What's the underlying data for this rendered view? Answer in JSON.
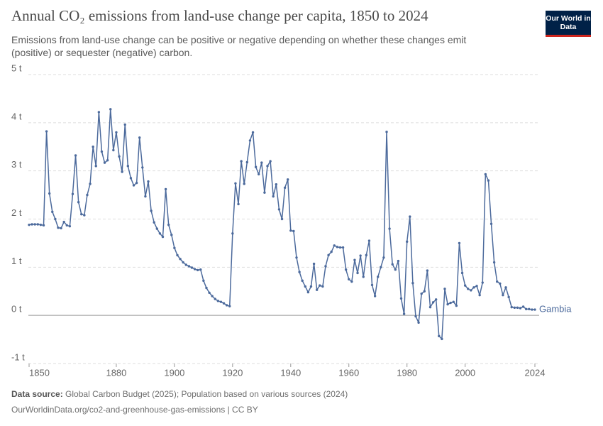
{
  "chart_data": {
    "type": "line",
    "title": "Annual CO₂ emissions from land-use change per capita, 1850 to 2024",
    "subtitle": "Emissions from land-use change can be positive or negative depending on whether these changes emit (positive) or sequester (negative) carbon.",
    "logo": "Our World in Data",
    "source_label": "Data source:",
    "source": "Global Carbon Budget (2025); Population based on various sources (2024)",
    "url": "OurWorldinData.org/co2-and-greenhouse-gas-emissions | CC BY",
    "x": [
      1850,
      1851,
      1852,
      1853,
      1854,
      1855,
      1856,
      1857,
      1858,
      1859,
      1860,
      1861,
      1862,
      1863,
      1864,
      1865,
      1866,
      1867,
      1868,
      1869,
      1870,
      1871,
      1872,
      1873,
      1874,
      1875,
      1876,
      1877,
      1878,
      1879,
      1880,
      1881,
      1882,
      1883,
      1884,
      1885,
      1886,
      1887,
      1888,
      1889,
      1890,
      1891,
      1892,
      1893,
      1894,
      1895,
      1896,
      1897,
      1898,
      1899,
      1900,
      1901,
      1902,
      1903,
      1904,
      1905,
      1906,
      1907,
      1908,
      1909,
      1910,
      1911,
      1912,
      1913,
      1914,
      1915,
      1916,
      1917,
      1918,
      1919,
      1920,
      1921,
      1922,
      1923,
      1924,
      1925,
      1926,
      1927,
      1928,
      1929,
      1930,
      1931,
      1932,
      1933,
      1934,
      1935,
      1936,
      1937,
      1938,
      1939,
      1940,
      1941,
      1942,
      1943,
      1944,
      1945,
      1946,
      1947,
      1948,
      1949,
      1950,
      1951,
      1952,
      1953,
      1954,
      1955,
      1956,
      1957,
      1958,
      1959,
      1960,
      1961,
      1962,
      1963,
      1964,
      1965,
      1966,
      1967,
      1968,
      1969,
      1970,
      1971,
      1972,
      1973,
      1974,
      1975,
      1976,
      1977,
      1978,
      1979,
      1980,
      1981,
      1982,
      1983,
      1984,
      1985,
      1986,
      1987,
      1988,
      1989,
      1990,
      1991,
      1992,
      1993,
      1994,
      1995,
      1996,
      1997,
      1998,
      1999,
      2000,
      2001,
      2002,
      2003,
      2004,
      2005,
      2006,
      2007,
      2008,
      2009,
      2010,
      2011,
      2012,
      2013,
      2014,
      2015,
      2016,
      2017,
      2018,
      2019,
      2020,
      2021,
      2022,
      2023,
      2024
    ],
    "series": [
      {
        "name": "Gambia",
        "color": "#4c6a9c",
        "values": [
          1.88,
          1.89,
          1.89,
          1.89,
          1.88,
          1.87,
          3.82,
          2.53,
          2.15,
          2.0,
          1.82,
          1.81,
          1.94,
          1.87,
          1.85,
          2.52,
          3.32,
          2.35,
          2.1,
          2.08,
          2.5,
          2.73,
          3.5,
          3.1,
          4.22,
          3.4,
          3.17,
          3.22,
          4.28,
          3.43,
          3.8,
          3.3,
          2.98,
          3.96,
          3.1,
          2.85,
          2.7,
          2.75,
          3.69,
          3.07,
          2.47,
          2.78,
          2.17,
          1.93,
          1.8,
          1.7,
          1.63,
          2.62,
          1.88,
          1.67,
          1.4,
          1.25,
          1.17,
          1.1,
          1.05,
          1.02,
          0.99,
          0.96,
          0.94,
          0.95,
          0.72,
          0.57,
          0.47,
          0.4,
          0.34,
          0.3,
          0.28,
          0.25,
          0.21,
          0.19,
          1.7,
          2.74,
          2.31,
          3.2,
          2.73,
          3.18,
          3.63,
          3.8,
          3.08,
          2.93,
          3.17,
          2.55,
          3.1,
          3.2,
          2.47,
          2.72,
          2.2,
          2.0,
          2.65,
          2.82,
          1.76,
          1.75,
          1.2,
          0.9,
          0.72,
          0.6,
          0.48,
          0.6,
          1.07,
          0.53,
          0.62,
          0.6,
          1.02,
          1.25,
          1.32,
          1.45,
          1.42,
          1.41,
          1.41,
          0.95,
          0.75,
          0.7,
          1.15,
          0.88,
          1.24,
          0.8,
          1.25,
          1.55,
          0.63,
          0.4,
          0.8,
          1.0,
          1.2,
          3.81,
          1.8,
          1.06,
          0.95,
          1.13,
          0.35,
          0.03,
          1.53,
          2.05,
          0.67,
          -0.02,
          -0.15,
          0.45,
          0.5,
          0.93,
          0.17,
          0.27,
          0.33,
          -0.43,
          -0.49,
          0.55,
          0.23,
          0.26,
          0.28,
          0.2,
          1.5,
          0.88,
          0.62,
          0.55,
          0.52,
          0.58,
          0.61,
          0.42,
          0.68,
          2.93,
          2.8,
          1.9,
          1.1,
          0.7,
          0.66,
          0.42,
          0.58,
          0.38,
          0.17,
          0.16,
          0.16,
          0.15,
          0.18,
          0.13,
          0.13,
          0.12,
          0.12
        ]
      }
    ],
    "xlim": [
      1850,
      2024
    ],
    "xticks": [
      1850,
      1880,
      1900,
      1920,
      1940,
      1960,
      1980,
      2000,
      2024
    ],
    "ylim": [
      -1,
      5
    ],
    "yticks": [
      {
        "value": -1,
        "label": "-1 t"
      },
      {
        "value": 0,
        "label": "0 t"
      },
      {
        "value": 1,
        "label": "1 t"
      },
      {
        "value": 2,
        "label": "2 t"
      },
      {
        "value": 3,
        "label": "3 t"
      },
      {
        "value": 4,
        "label": "4 t"
      },
      {
        "value": 5,
        "label": "5 t"
      }
    ],
    "grid": true
  }
}
